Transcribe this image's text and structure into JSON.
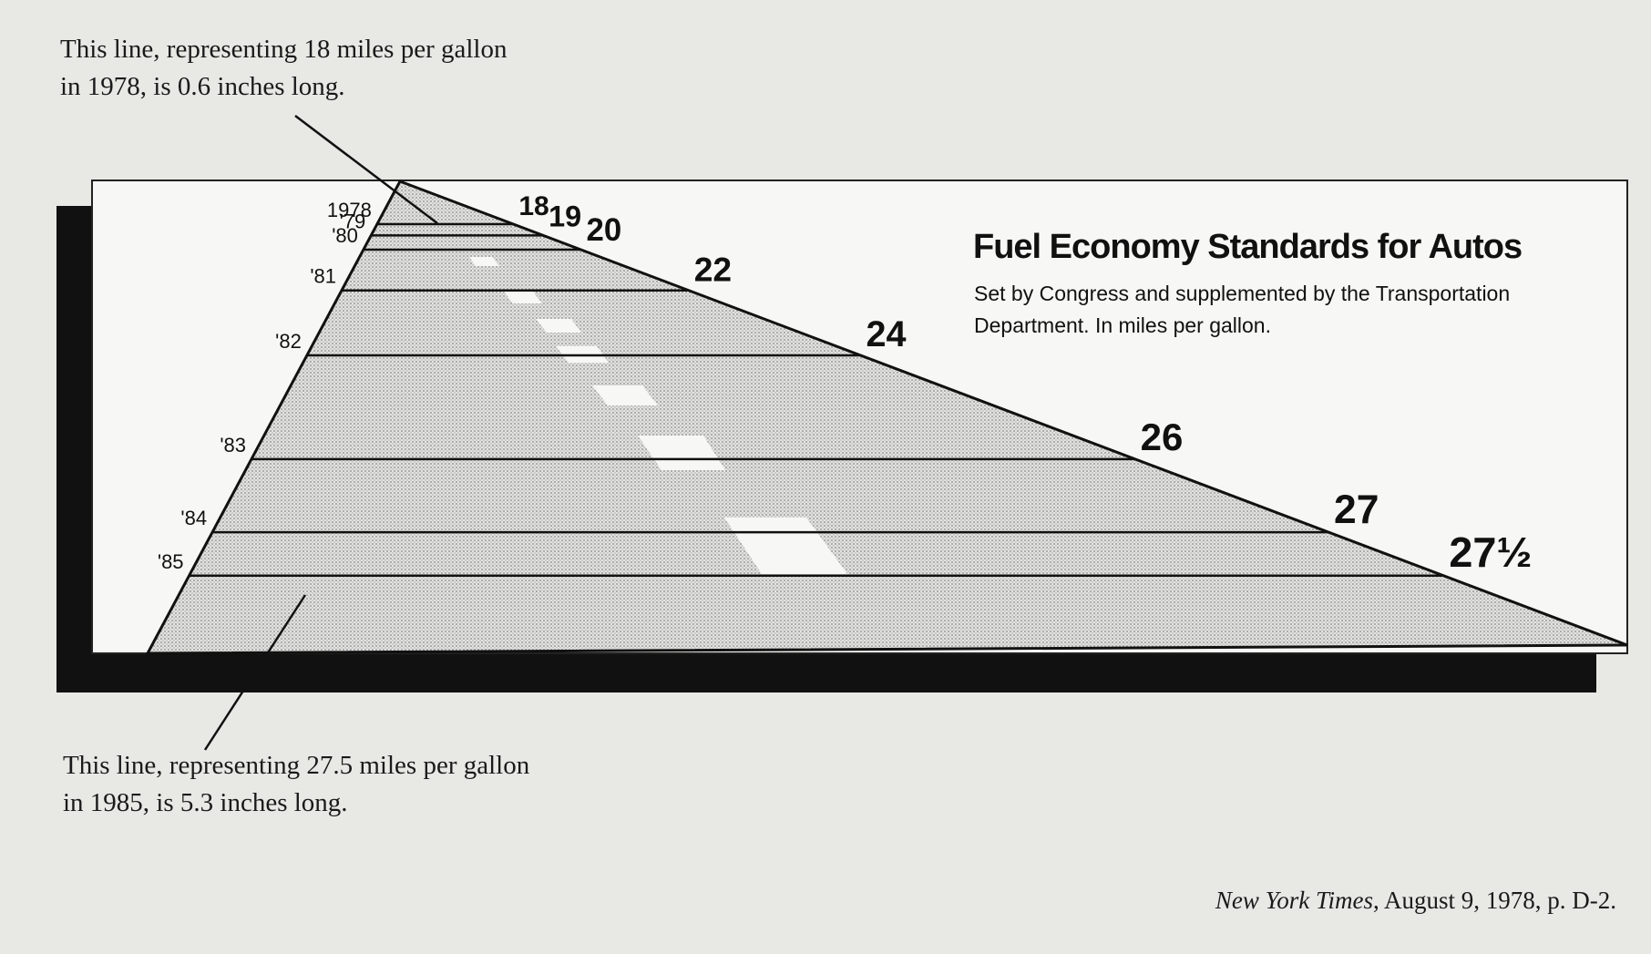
{
  "chart_data": {
    "type": "road",
    "title": "Fuel Economy Standards for Autos",
    "subtitle": "Set by Congress and supplemented by the Transportation Department. In miles per gallon.",
    "categories": [
      "1978",
      "'79",
      "'80",
      "'81",
      "'82",
      "'83",
      "'84",
      "'85"
    ],
    "values": [
      18,
      19,
      20,
      22,
      24,
      26,
      27,
      27.5
    ],
    "value_labels": [
      "18",
      "19",
      "20",
      "22",
      "24",
      "26",
      "27",
      "27½"
    ],
    "annotations": [
      "This line, representing 18 miles per gallon in 1978, is 0.6 inches long.",
      "This line, representing 27.5 miles per gallon in 1985, is 5.3 inches long."
    ],
    "source_title": "New York Times",
    "source_rest": ", August 9, 1978, p. D-2."
  }
}
